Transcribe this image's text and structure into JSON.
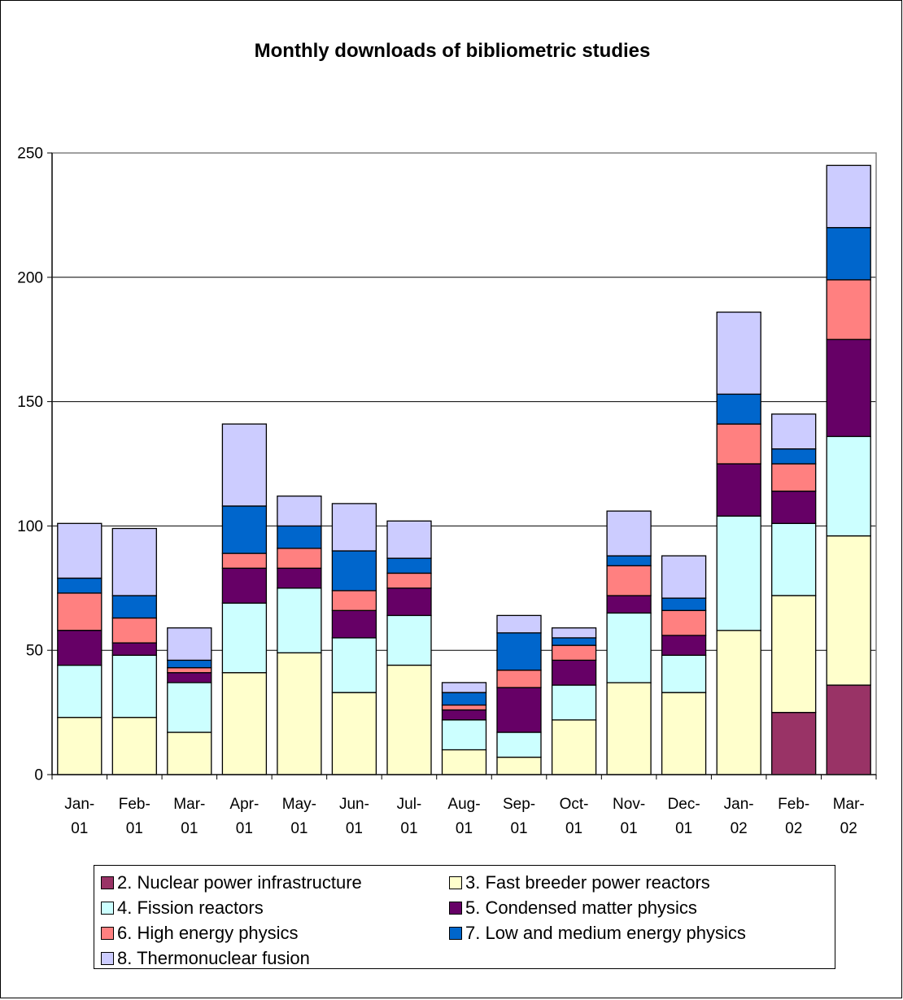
{
  "chart_data": {
    "type": "bar",
    "stacked": true,
    "title": "Monthly downloads of bibliometric studies",
    "xlabel": "",
    "ylabel": "",
    "ylim": [
      0,
      250
    ],
    "yticks": [
      0,
      50,
      100,
      150,
      200,
      250
    ],
    "grid": true,
    "legend_position": "bottom",
    "categories": [
      [
        "Jan-",
        "01"
      ],
      [
        "Feb-",
        "01"
      ],
      [
        "Mar-",
        "01"
      ],
      [
        "Apr-",
        "01"
      ],
      [
        "May-",
        "01"
      ],
      [
        "Jun-",
        "01"
      ],
      [
        "Jul-",
        "01"
      ],
      [
        "Aug-",
        "01"
      ],
      [
        "Sep-",
        "01"
      ],
      [
        "Oct-",
        "01"
      ],
      [
        "Nov-",
        "01"
      ],
      [
        "Dec-",
        "01"
      ],
      [
        "Jan-",
        "02"
      ],
      [
        "Feb-",
        "02"
      ],
      [
        "Mar-",
        "02"
      ]
    ],
    "series": [
      {
        "name": "2. Nuclear power infrastructure",
        "color": "#993366",
        "values": [
          0,
          0,
          0,
          0,
          0,
          0,
          0,
          0,
          0,
          0,
          0,
          0,
          0,
          25,
          36
        ]
      },
      {
        "name": "3. Fast breeder power reactors",
        "color": "#FFFFCC",
        "values": [
          23,
          23,
          17,
          41,
          49,
          33,
          44,
          10,
          7,
          22,
          37,
          33,
          58,
          47,
          60
        ]
      },
      {
        "name": "4. Fission reactors",
        "color": "#CCFFFF",
        "values": [
          21,
          25,
          20,
          28,
          26,
          22,
          20,
          12,
          10,
          14,
          28,
          15,
          46,
          29,
          40
        ]
      },
      {
        "name": "5. Condensed matter physics",
        "color": "#660066",
        "values": [
          14,
          5,
          4,
          14,
          8,
          11,
          11,
          4,
          18,
          10,
          7,
          8,
          21,
          13,
          39
        ]
      },
      {
        "name": "6. High energy physics",
        "color": "#FF8080",
        "values": [
          15,
          10,
          2,
          6,
          8,
          8,
          6,
          2,
          7,
          6,
          12,
          10,
          16,
          11,
          24
        ]
      },
      {
        "name": "7. Low and medium energy physics",
        "color": "#0066CC",
        "values": [
          6,
          9,
          3,
          19,
          9,
          16,
          6,
          5,
          15,
          3,
          4,
          5,
          12,
          6,
          21
        ]
      },
      {
        "name": "8. Thermonuclear fusion",
        "color": "#CCCCFF",
        "values": [
          22,
          27,
          13,
          33,
          12,
          19,
          15,
          4,
          7,
          4,
          18,
          17,
          33,
          14,
          25
        ]
      }
    ]
  }
}
